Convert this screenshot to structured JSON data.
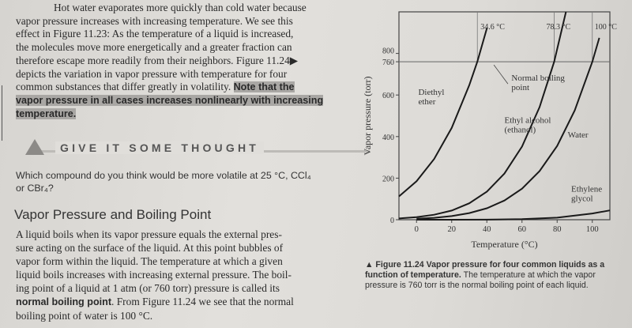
{
  "paragraph1": {
    "lines": [
      "Hot water evaporates more quickly than cold water because",
      "vapor pressure increases with increasing temperature. We see this",
      "effect in Figure 11.23: As the temperature of a liquid is increased,",
      "the molecules move more energetically and a greater fraction can",
      "therefore escape more readily from their neighbors. Figure 11.24▶",
      "depicts the variation in vapor pressure with temperature for four",
      "common substances that differ greatly in volatility."
    ],
    "highlight_1": "Note that the",
    "highlight_2": "vapor pressure in all cases increases nonlinearly with increasing",
    "highlight_3": "temperature."
  },
  "give_it_some_thought": {
    "title": "GIVE IT SOME THOUGHT",
    "question_line1": "Which compound do you think would be more volatile at 25 °C, CCl₄",
    "question_line2": "or CBr₄?"
  },
  "section_heading": "Vapor Pressure and Boiling Point",
  "paragraph2": {
    "lines": [
      "A liquid boils when its vapor pressure equals the external pres-",
      "sure acting on the surface of the liquid. At this point bubbles of",
      "vapor form within the liquid. The temperature at which a given",
      "liquid boils increases with increasing external pressure. The boil-",
      "ing point of a liquid at 1 atm (or 760 torr) pressure is called its"
    ],
    "bold_term": "normal boiling point",
    "after_bold": ". From Figure 11.24 we see that the normal",
    "last_line": "boiling point of water is 100 °C."
  },
  "caption": {
    "label": "▲ Figure 11.24",
    "bold_title": "Vapor pressure for four common liquids as a function of temperature.",
    "text": "The temperature at which the vapor pressure is 760 torr is the normal boiling point of each liquid."
  },
  "chart_data": {
    "type": "line",
    "xlabel": "Temperature (°C)",
    "ylabel": "Vapor pressure (torr)",
    "xlim": [
      -10,
      110
    ],
    "ylim": [
      0,
      1000
    ],
    "x_ticks": [
      "0",
      "20",
      "40",
      "60",
      "80",
      "100"
    ],
    "y_ticks": [
      "0",
      "200",
      "400",
      "600",
      "760",
      "800"
    ],
    "reference_line_760": 760,
    "annotations": {
      "normal_bp": "Normal boiling point",
      "bp_ether": "34.6 °C",
      "bp_ethanol": "78.3 °C",
      "bp_water": "100 °C"
    },
    "series": [
      {
        "name": "Diethyl ether",
        "label_lines": [
          "Diethyl",
          "ether"
        ],
        "x": [
          -10,
          0,
          10,
          20,
          30,
          34.6,
          40
        ],
        "y": [
          112,
          185,
          292,
          442,
          647,
          760,
          921
        ]
      },
      {
        "name": "Ethyl alcohol (ethanol)",
        "label_lines": [
          "Ethyl alcohol",
          "(ethanol)"
        ],
        "x": [
          -10,
          0,
          10,
          20,
          30,
          40,
          50,
          60,
          70,
          78.3,
          85
        ],
        "y": [
          6,
          12,
          24,
          44,
          79,
          135,
          222,
          352,
          542,
          760,
          1000
        ]
      },
      {
        "name": "Water",
        "label_lines": [
          "Water"
        ],
        "x": [
          0,
          10,
          20,
          30,
          40,
          50,
          60,
          70,
          80,
          90,
          100,
          104
        ],
        "y": [
          4.6,
          9.2,
          17.5,
          31.8,
          55.3,
          92.5,
          149.4,
          233.7,
          355.1,
          525.8,
          760,
          875
        ]
      },
      {
        "name": "Ethylene glycol",
        "label_lines": [
          "Ethylene",
          "glycol"
        ],
        "x": [
          0,
          20,
          40,
          60,
          80,
          100,
          110
        ],
        "y": [
          0.06,
          0.06,
          0.5,
          2.5,
          10,
          30,
          45
        ]
      }
    ]
  }
}
